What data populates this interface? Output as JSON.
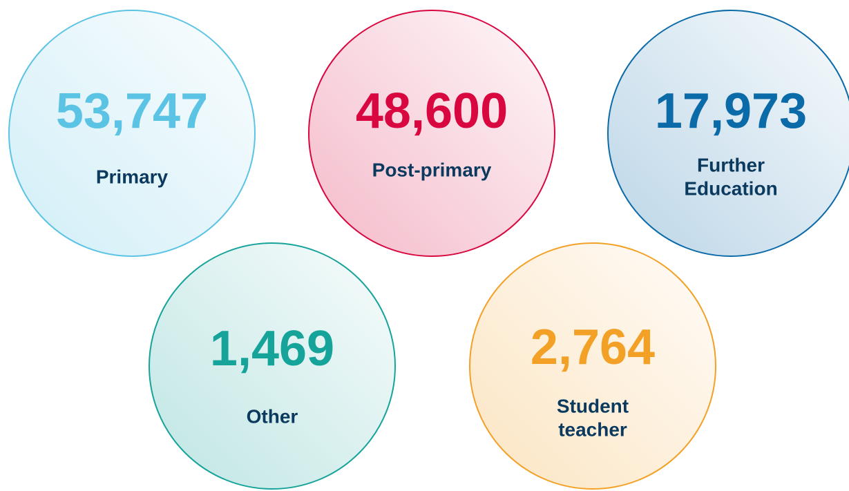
{
  "items": [
    {
      "value": "53,747",
      "label": [
        "Primary"
      ],
      "color": "#5bc3e4"
    },
    {
      "value": "48,600",
      "label": [
        "Post-primary"
      ],
      "color": "#d8073f"
    },
    {
      "value": "17,973",
      "label": [
        "Further",
        "Education"
      ],
      "color": "#0b6aa8"
    },
    {
      "value": "1,469",
      "label": [
        "Other"
      ],
      "color": "#16a39a"
    },
    {
      "value": "2,764",
      "label": [
        "Student",
        "teacher"
      ],
      "color": "#f3a126"
    }
  ]
}
